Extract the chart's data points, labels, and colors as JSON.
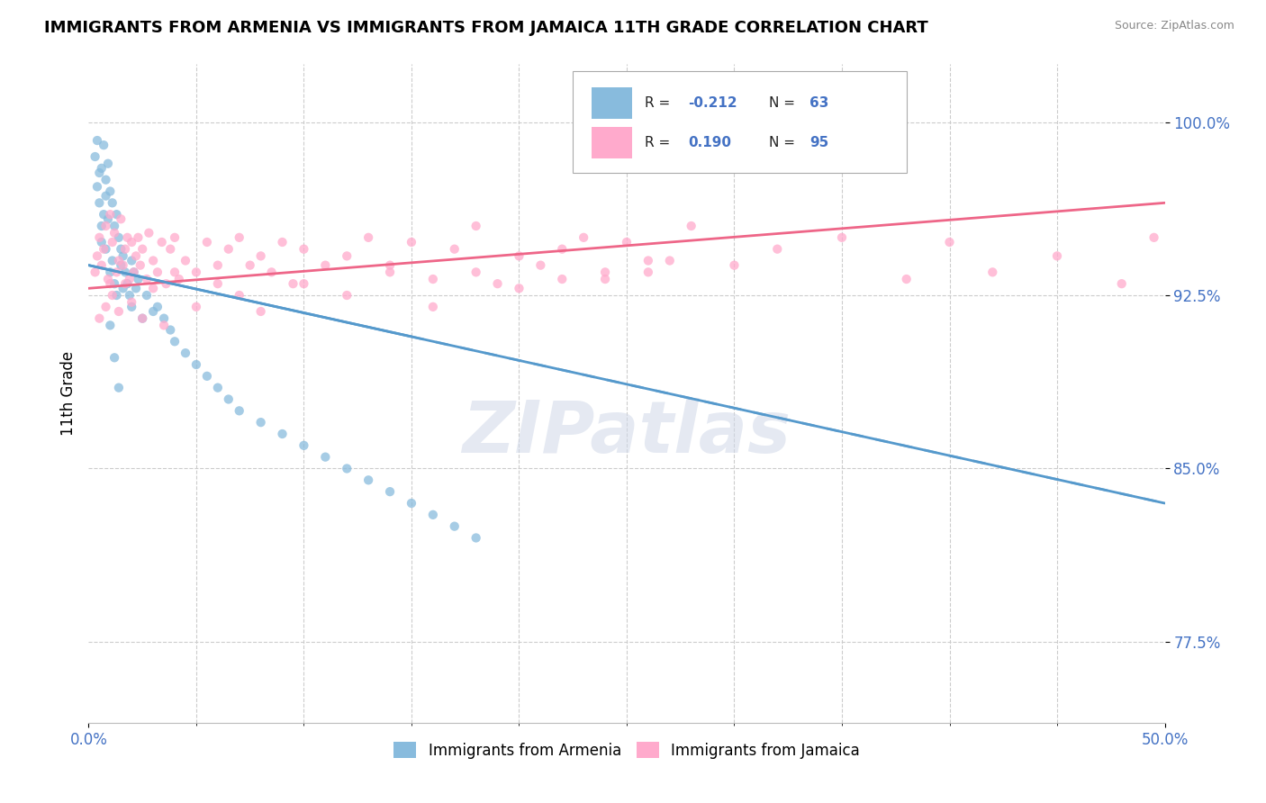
{
  "title": "IMMIGRANTS FROM ARMENIA VS IMMIGRANTS FROM JAMAICA 11TH GRADE CORRELATION CHART",
  "source": "Source: ZipAtlas.com",
  "ylabel": "11th Grade",
  "y_ticks": [
    77.5,
    85.0,
    92.5,
    100.0
  ],
  "x_min": 0.0,
  "x_max": 50.0,
  "y_min": 74.0,
  "y_max": 102.5,
  "r_armenia": -0.212,
  "n_armenia": 63,
  "r_jamaica": 0.19,
  "n_jamaica": 95,
  "color_armenia": "#88bbdd",
  "color_jamaica": "#ffaacc",
  "watermark": "ZIPatlas",
  "legend_label_armenia": "Immigrants from Armenia",
  "legend_label_jamaica": "Immigrants from Jamaica",
  "armenia_scatter_x": [
    0.3,
    0.4,
    0.5,
    0.5,
    0.6,
    0.6,
    0.7,
    0.7,
    0.8,
    0.8,
    0.9,
    0.9,
    1.0,
    1.0,
    1.1,
    1.1,
    1.2,
    1.2,
    1.3,
    1.3,
    1.4,
    1.5,
    1.5,
    1.6,
    1.6,
    1.7,
    1.8,
    1.9,
    2.0,
    2.0,
    2.1,
    2.2,
    2.3,
    2.5,
    2.7,
    3.0,
    3.2,
    3.5,
    3.8,
    4.0,
    4.5,
    5.0,
    5.5,
    6.0,
    6.5,
    7.0,
    8.0,
    9.0,
    10.0,
    11.0,
    12.0,
    13.0,
    14.0,
    15.0,
    16.0,
    17.0,
    18.0,
    0.4,
    0.6,
    0.8,
    1.0,
    1.2,
    1.4
  ],
  "armenia_scatter_y": [
    98.5,
    99.2,
    97.8,
    96.5,
    98.0,
    95.5,
    99.0,
    96.0,
    97.5,
    94.5,
    98.2,
    95.8,
    97.0,
    93.5,
    96.5,
    94.0,
    95.5,
    93.0,
    96.0,
    92.5,
    95.0,
    94.5,
    93.8,
    94.2,
    92.8,
    93.5,
    93.0,
    92.5,
    94.0,
    92.0,
    93.5,
    92.8,
    93.2,
    91.5,
    92.5,
    91.8,
    92.0,
    91.5,
    91.0,
    90.5,
    90.0,
    89.5,
    89.0,
    88.5,
    88.0,
    87.5,
    87.0,
    86.5,
    86.0,
    85.5,
    85.0,
    84.5,
    84.0,
    83.5,
    83.0,
    82.5,
    82.0,
    97.2,
    94.8,
    96.8,
    91.2,
    89.8,
    88.5
  ],
  "jamaica_scatter_x": [
    0.3,
    0.4,
    0.5,
    0.6,
    0.7,
    0.8,
    0.9,
    1.0,
    1.0,
    1.1,
    1.2,
    1.3,
    1.4,
    1.5,
    1.6,
    1.7,
    1.8,
    1.9,
    2.0,
    2.1,
    2.2,
    2.3,
    2.4,
    2.5,
    2.7,
    2.8,
    3.0,
    3.2,
    3.4,
    3.6,
    3.8,
    4.0,
    4.2,
    4.5,
    5.0,
    5.5,
    6.0,
    6.5,
    7.0,
    7.5,
    8.0,
    8.5,
    9.0,
    9.5,
    10.0,
    11.0,
    12.0,
    13.0,
    14.0,
    15.0,
    16.0,
    17.0,
    18.0,
    19.0,
    20.0,
    21.0,
    22.0,
    23.0,
    24.0,
    25.0,
    26.0,
    27.0,
    28.0,
    30.0,
    32.0,
    35.0,
    38.0,
    40.0,
    42.0,
    45.0,
    48.0,
    49.5,
    0.5,
    0.8,
    1.1,
    1.4,
    1.7,
    2.0,
    2.5,
    3.0,
    3.5,
    4.0,
    5.0,
    6.0,
    7.0,
    8.0,
    10.0,
    12.0,
    14.0,
    16.0,
    18.0,
    20.0,
    22.0,
    24.0,
    26.0
  ],
  "jamaica_scatter_y": [
    93.5,
    94.2,
    95.0,
    93.8,
    94.5,
    95.5,
    93.2,
    96.0,
    93.0,
    94.8,
    95.2,
    93.5,
    94.0,
    95.8,
    93.8,
    94.5,
    95.0,
    93.2,
    94.8,
    93.5,
    94.2,
    95.0,
    93.8,
    94.5,
    93.2,
    95.2,
    94.0,
    93.5,
    94.8,
    93.0,
    94.5,
    95.0,
    93.2,
    94.0,
    93.5,
    94.8,
    93.0,
    94.5,
    95.0,
    93.8,
    94.2,
    93.5,
    94.8,
    93.0,
    94.5,
    93.8,
    94.2,
    95.0,
    93.5,
    94.8,
    93.2,
    94.5,
    95.5,
    93.0,
    94.2,
    93.8,
    94.5,
    95.0,
    93.2,
    94.8,
    93.5,
    94.0,
    95.5,
    93.8,
    94.5,
    95.0,
    93.2,
    94.8,
    93.5,
    94.2,
    93.0,
    95.0,
    91.5,
    92.0,
    92.5,
    91.8,
    93.0,
    92.2,
    91.5,
    92.8,
    91.2,
    93.5,
    92.0,
    93.8,
    92.5,
    91.8,
    93.0,
    92.5,
    93.8,
    92.0,
    93.5,
    92.8,
    93.2,
    93.5,
    94.0
  ],
  "trend_armenia_y0": 93.8,
  "trend_armenia_y1": 83.5,
  "trend_jamaica_y0": 92.8,
  "trend_jamaica_y1": 96.5,
  "dashed_start_x": 15.0,
  "trend_armenia_color": "#5599cc",
  "trend_jamaica_color": "#ee6688"
}
